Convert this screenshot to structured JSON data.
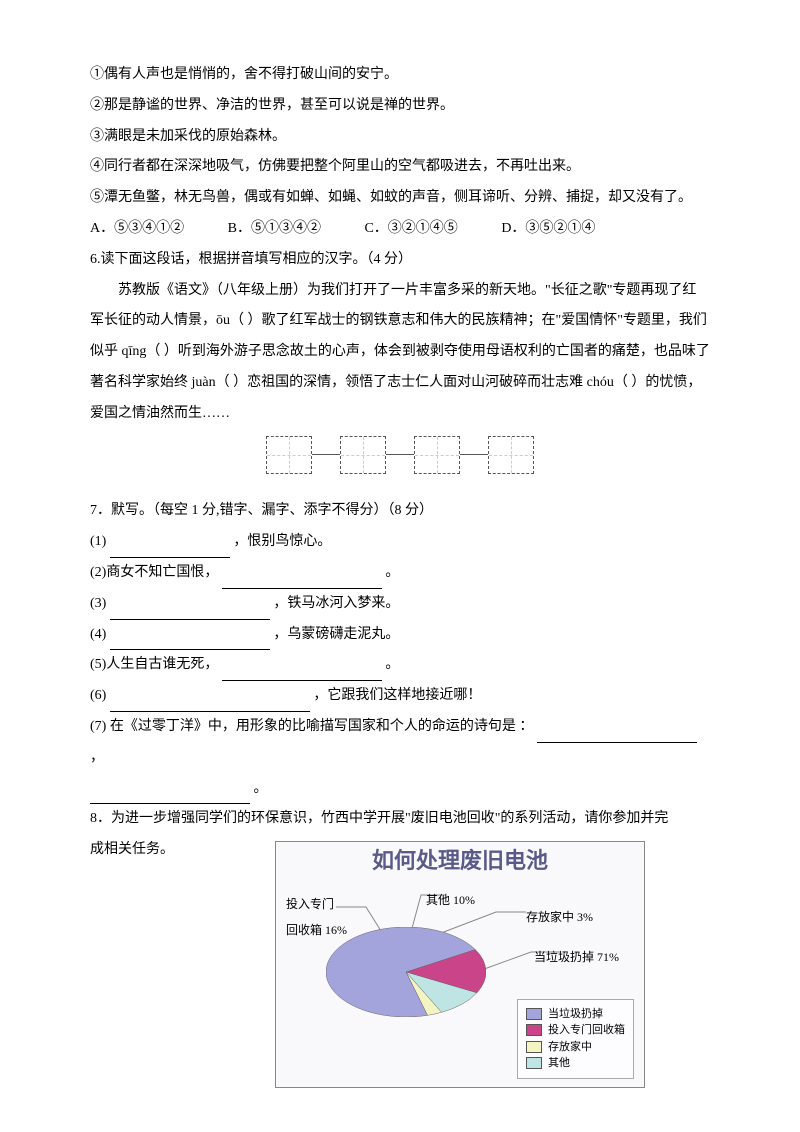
{
  "lines": {
    "l1": "①偶有人声也是悄悄的，舍不得打破山间的安宁。",
    "l2": "②那是静谧的世界、净洁的世界，甚至可以说是禅的世界。",
    "l3": "③满眼是未加采伐的原始森林。",
    "l4": "④同行者都在深深地吸气，仿佛要把整个阿里山的空气都吸进去，不再吐出来。",
    "l5": "⑤潭无鱼鳖，林无鸟兽，偶或有如蝉、如蝇、如蚊的声音，侧耳谛听、分辨、捕捉，却又没有了。"
  },
  "options": {
    "a": "A．⑤③④①②",
    "b": "B．⑤①③④②",
    "c": "C．③②①④⑤",
    "d": "D．③⑤②①④"
  },
  "q6": {
    "title": "6.读下面这段话，根据拼音填写相应的汉字。（4 分）",
    "para": "苏教版《语文》（八年级上册）为我们打开了一片丰富多采的新天地。\"长征之歌\"专题再现了红军长征的动人情景，ōu（    ）歌了红军战士的钢铁意志和伟大的民族精神；在\"爱国情怀\"专题里，我们似乎 qīng（     ）听到海外游子思念故土的心声，体会到被剥夺使用母语权利的亡国者的痛楚，也品味了著名科学家始终 juàn（     ）恋祖国的深情，领悟了志士仁人面对山河破碎而壮志难 chóu（    ）的忧愤，爱国之情油然而生……"
  },
  "q7": {
    "title": "7．默写。（每空 1 分,错字、漏字、添字不得分）（8 分）",
    "i1a": "(1) ",
    "i1b": "，恨别鸟惊心。",
    "i2a": "(2)商女不知亡国恨，",
    "i2b": "。",
    "i3a": "(3)",
    "i3b": "，铁马冰河入梦来。",
    "i4a": "(4)",
    "i4b": "，乌蒙磅礴走泥丸。",
    "i5a": "(5)人生自古谁无死，",
    "i5b": "。",
    "i6a": "(6)",
    "i6b": "，它跟我们这样地接近哪！",
    "i7a": "(7)  在《过零丁洋》中，用形象的比喻描写国家和个人的命运的诗句是 ：",
    "i7b": "，",
    "i7c": "。"
  },
  "q8": {
    "text_a": "8．为进一步增强同学们的环保意识，竹西中学开展\"废旧电池回收\"的系列活动，请你参加并完",
    "text_b": "成相关任务。"
  },
  "chart": {
    "type": "pie",
    "title": "如何处理废旧电池",
    "background_color": "#f9f9fb",
    "title_color": "#5a5a8a",
    "title_fontsize": 22,
    "slices": [
      {
        "label": "当垃圾扔掉",
        "value": 71,
        "color": "#a4a4dd",
        "depth": "#6a6ac0"
      },
      {
        "label": "投入专门回收箱",
        "value": 16,
        "color": "#c94488",
        "depth": "#8a2d5c"
      },
      {
        "label": "存放家中",
        "value": 3,
        "color": "#f4f4c2",
        "depth": "#cccc88"
      },
      {
        "label": "其他",
        "value": 10,
        "color": "#bfe4e4",
        "depth": "#8abcbc"
      }
    ],
    "callouts": {
      "discard": "当垃圾扔掉 71%",
      "recycle_a": "投入专门",
      "recycle_b": "回收箱 16%",
      "other": "其他 10%",
      "home": "存放家中 3%"
    },
    "legend_border": "#aaaaaa",
    "callout_fontsize": 12
  }
}
